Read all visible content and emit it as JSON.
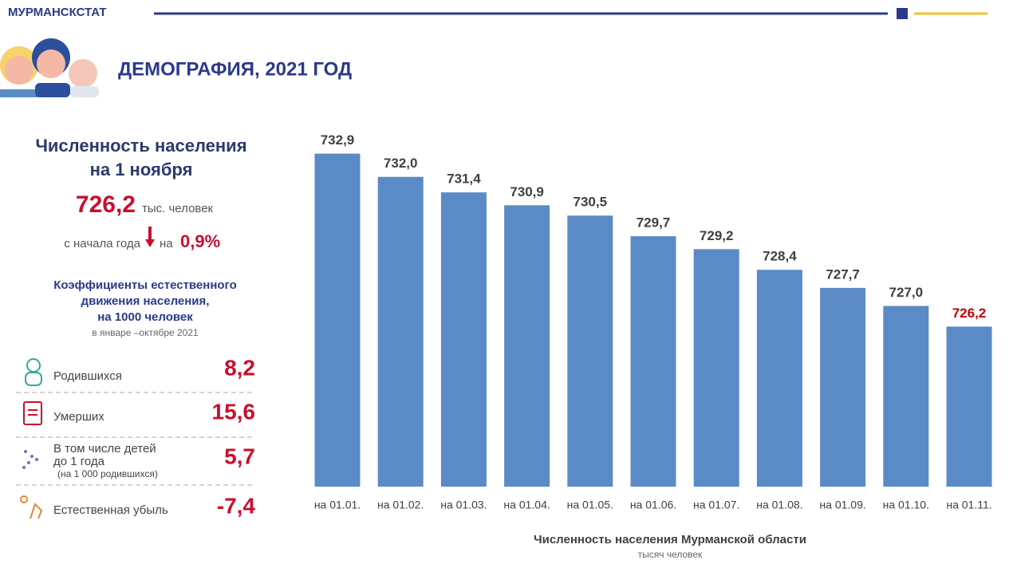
{
  "header": {
    "org": "МУРМАНСКСТАТ",
    "title": "ДЕМОГРАФИЯ, 2021 ГОД"
  },
  "population": {
    "heading": [
      "Численность населения",
      "на 1 ноября"
    ],
    "value": "726,2",
    "unit": "тыс. человек",
    "change_prefix": "с начала года",
    "change_on": "на",
    "change_value": "0,9%"
  },
  "coefficients": {
    "heading": [
      "Коэффициенты естественного",
      "движения населения,",
      "на 1000 человек"
    ],
    "period": "в январе –октябре 2021",
    "rows": [
      {
        "label": [
          "Родившихся"
        ],
        "value": "8,2"
      },
      {
        "label": [
          "Умерших"
        ],
        "value": "15,6"
      },
      {
        "label": [
          "В том числе детей",
          "до 1 года",
          "(на 1 000 родившихся)"
        ],
        "value": "5,7"
      },
      {
        "label": [
          "Естественная убыль"
        ],
        "value": "-7,4"
      }
    ]
  },
  "chart_data": {
    "type": "bar",
    "title": "Численность населения Мурманской области",
    "subtitle": "тысяч человек",
    "categories": [
      "на 01.01.",
      "на 01.02.",
      "на 01.03.",
      "на 01.04.",
      "на 01.05.",
      "на 01.06.",
      "на 01.07.",
      "на 01.08.",
      "на 01.09.",
      "на 01.10.",
      "на 01.11."
    ],
    "values": [
      732.9,
      732.0,
      731.4,
      730.9,
      730.5,
      729.7,
      729.2,
      728.4,
      727.7,
      727.0,
      726.2
    ],
    "value_labels": [
      "732,9",
      "732,0",
      "731,4",
      "730,9",
      "730,5",
      "729,7",
      "729,2",
      "728,4",
      "727,7",
      "727,0",
      "726,2"
    ],
    "value_label_colors": [
      "#404040",
      "#404040",
      "#404040",
      "#404040",
      "#404040",
      "#404040",
      "#404040",
      "#404040",
      "#404040",
      "#404040",
      "#c00000"
    ],
    "color": "#5b8bc6",
    "ylim": [
      720,
      734
    ]
  }
}
